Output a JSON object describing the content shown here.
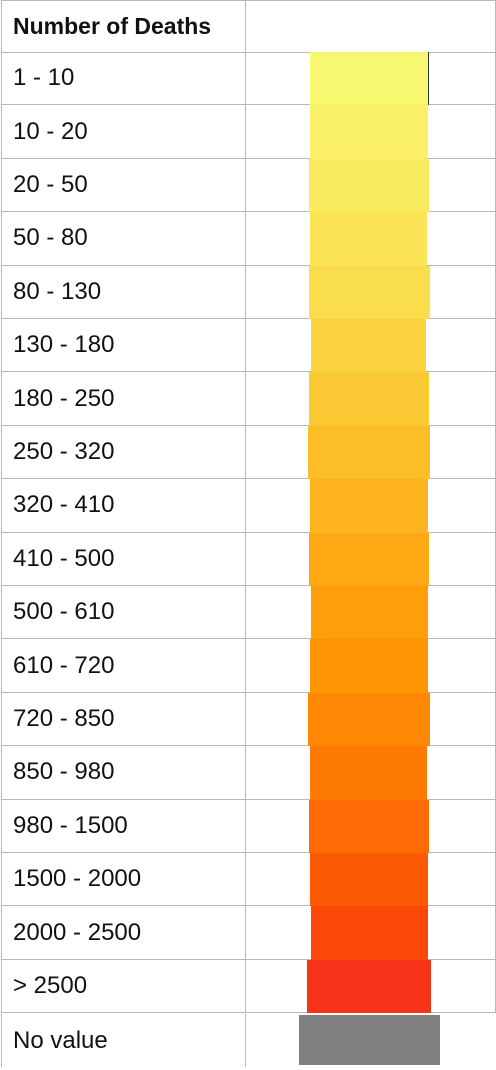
{
  "chart_data": {
    "type": "table",
    "title": "Number of Deaths",
    "legend_bins": [
      {
        "label": "1 - 10",
        "color": "#f8f870"
      },
      {
        "label": "10 - 20",
        "color": "#f9f067"
      },
      {
        "label": "20 - 50",
        "color": "#f9eb5f"
      },
      {
        "label": "50 - 80",
        "color": "#fae455"
      },
      {
        "label": "80 - 130",
        "color": "#fadd4b"
      },
      {
        "label": "130 - 180",
        "color": "#fbd33f"
      },
      {
        "label": "180 - 250",
        "color": "#fbc933"
      },
      {
        "label": "250 - 320",
        "color": "#fcbe27"
      },
      {
        "label": "320 - 410",
        "color": "#fcb31d"
      },
      {
        "label": "410 - 500",
        "color": "#fda914"
      },
      {
        "label": "500 - 610",
        "color": "#fe9f0a"
      },
      {
        "label": "610 - 720",
        "color": "#fe9304"
      },
      {
        "label": "720 - 850",
        "color": "#fe8803"
      },
      {
        "label": "850 - 980",
        "color": "#fe7a03"
      },
      {
        "label": "980 - 1500",
        "color": "#fe6a03"
      },
      {
        "label": "1500 - 2000",
        "color": "#fd5a05"
      },
      {
        "label": "2000 - 2500",
        "color": "#fb4708"
      },
      {
        "label": "> 2500",
        "color": "#f8331a"
      }
    ],
    "no_value": {
      "label": "No value",
      "color": "#808080"
    }
  }
}
